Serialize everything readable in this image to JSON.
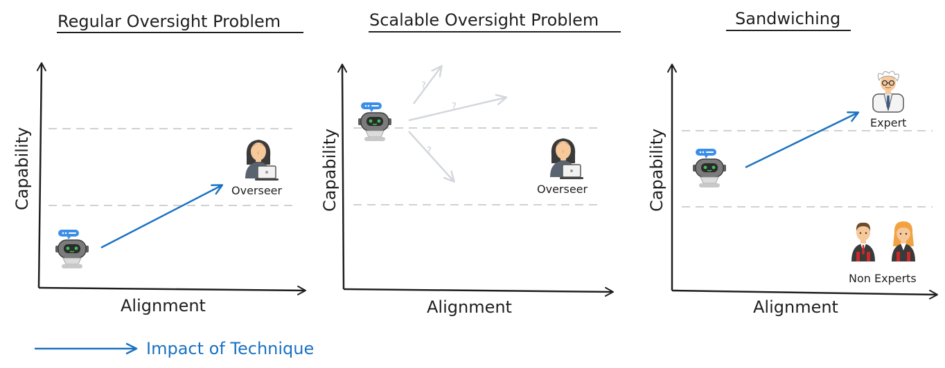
{
  "panels": [
    {
      "title": "Regular Oversight Problem",
      "x_axis_label": "Alignment",
      "y_axis_label": "Capability",
      "character_labels": [
        "Overseer"
      ]
    },
    {
      "title": "Scalable Oversight Problem",
      "x_axis_label": "Alignment",
      "y_axis_label": "Capability",
      "character_labels": [
        "Overseer"
      ],
      "uncertain_arrow_marks": [
        "?",
        "?",
        "?"
      ]
    },
    {
      "title": "Sandwiching",
      "x_axis_label": "Alignment",
      "y_axis_label": "Capability",
      "character_labels": [
        "Expert",
        "Non Experts"
      ]
    }
  ],
  "legend": {
    "label": "Impact of Technique"
  },
  "colors": {
    "ink": "#1e1e1e",
    "technique_arrow": "#1971c2",
    "dashed_line": "#d0d0d0",
    "faded_arrow": "#d3d7dd",
    "robot_bubble": "#3b8ee8",
    "robot_body": "#7b7b7b"
  },
  "icons": [
    "robot-icon",
    "overseer-icon",
    "laptop-icon",
    "expert-icon",
    "non-expert-icon"
  ]
}
